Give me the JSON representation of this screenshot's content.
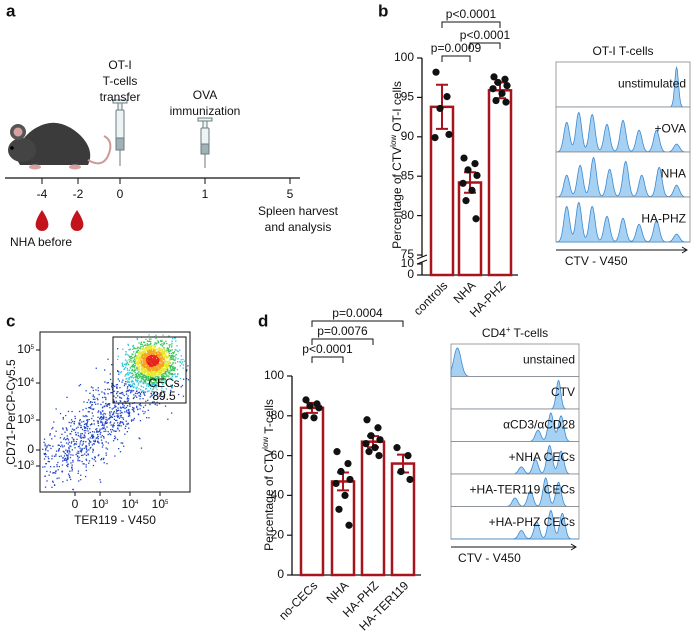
{
  "panel_labels": [
    "a",
    "b",
    "c",
    "d"
  ],
  "panel_a": {
    "days": [
      "-4",
      "-2",
      "0",
      "1",
      "5"
    ],
    "transfer": [
      "OT-I",
      "T-cells",
      "transfer"
    ],
    "immunization": [
      "OVA",
      "immunization"
    ],
    "harvest": [
      "Spleen harvest",
      "and analysis"
    ],
    "pretreatment": "NHA before"
  },
  "chart_data": [
    {
      "type": "bar",
      "ylabel": {
        "before": "Percentage of CTV",
        "sup": "low",
        "after": "OT-I cells"
      },
      "categories": [
        "controls",
        "NHA",
        "HA-PHZ"
      ],
      "values": [
        93.8,
        84.2,
        95.9
      ],
      "errors": [
        2.8,
        1.3,
        1.0
      ],
      "points": [
        [
          98.2,
          95.1,
          93.6,
          90.3,
          89.9
        ],
        [
          87.3,
          86.6,
          85.8,
          85.1,
          84.1,
          83.2,
          81.9,
          79.6
        ],
        [
          97.6,
          97.3,
          96.9,
          96.5,
          96.1,
          95.5,
          94.6,
          94.4
        ]
      ],
      "color": "#a8141c",
      "ylim": [
        0,
        100
      ],
      "ybreak": [
        10,
        75
      ],
      "yticks": [
        0,
        10,
        75,
        80,
        85,
        90,
        95,
        100
      ],
      "comparisons": [
        {
          "groups": [
            "controls",
            "NHA"
          ],
          "label": "p=0.0009"
        },
        {
          "groups": [
            "NHA",
            "HA-PHZ"
          ],
          "label": "p<0.0001"
        },
        {
          "groups": [
            "controls",
            "HA-PHZ"
          ],
          "label": "p<0.0001"
        }
      ]
    },
    {
      "type": "bar",
      "ylabel": {
        "before": "Percentage of CTV",
        "sup": "low",
        "after": "T-cells"
      },
      "categories": [
        "no-CECs",
        "NHA",
        "HA-PHZ",
        "HA-TER119"
      ],
      "values": [
        84,
        47,
        67,
        56
      ],
      "errors": [
        2.5,
        4.5,
        2.8,
        4.5
      ],
      "points": [
        [
          88,
          86,
          85,
          84,
          80,
          79
        ],
        [
          62,
          56,
          52,
          48,
          46,
          40,
          33,
          25
        ],
        [
          78,
          74,
          70,
          68,
          66,
          64,
          62,
          60
        ],
        [
          64,
          60,
          52,
          48
        ]
      ],
      "color": "#a8141c",
      "ylim": [
        0,
        100
      ],
      "yticks": [
        0,
        20,
        40,
        60,
        80,
        100
      ],
      "comparisons": [
        {
          "groups": [
            "no-CECs",
            "NHA"
          ],
          "label": "p<0.0001"
        },
        {
          "groups": [
            "no-CECs",
            "HA-PHZ"
          ],
          "label": "p=0.0076"
        },
        {
          "groups": [
            "no-CECs",
            "HA-TER119"
          ],
          "label": "p=0.0004"
        }
      ]
    }
  ],
  "histograms_b": {
    "title": {
      "before": "OT-I T-cells"
    },
    "rows": [
      "unstimulated",
      "+OVA",
      "NHA",
      "HA-PHZ"
    ],
    "xlabel": "CTV - V450"
  },
  "histograms_d": {
    "title": {
      "before": "CD4",
      "sup": "+",
      "after": "T-cells"
    },
    "rows": [
      "unstained",
      "CTV",
      "αCD3/αCD28",
      "+NHA CECs",
      "+HA-TER119 CECs",
      "+HA-PHZ CECs"
    ],
    "xlabel": "CTV - V450"
  },
  "panel_c": {
    "ylabel": "CD71-PerCP-Cy5.5",
    "xlabel": "TER119 - V450",
    "gate": {
      "name": "CECs",
      "value": 89.5
    },
    "yticks": [
      {
        "before": "10",
        "sup": "5"
      },
      {
        "before": "10",
        "sup": "4"
      },
      {
        "before": "10",
        "sup": "3"
      },
      {
        "before": "0"
      },
      {
        "before": "-10",
        "sup": "3"
      }
    ],
    "xticks": [
      {
        "before": "0"
      },
      {
        "before": "10",
        "sup": "3"
      },
      {
        "before": "10",
        "sup": "4"
      },
      {
        "before": "10",
        "sup": "5"
      }
    ]
  }
}
